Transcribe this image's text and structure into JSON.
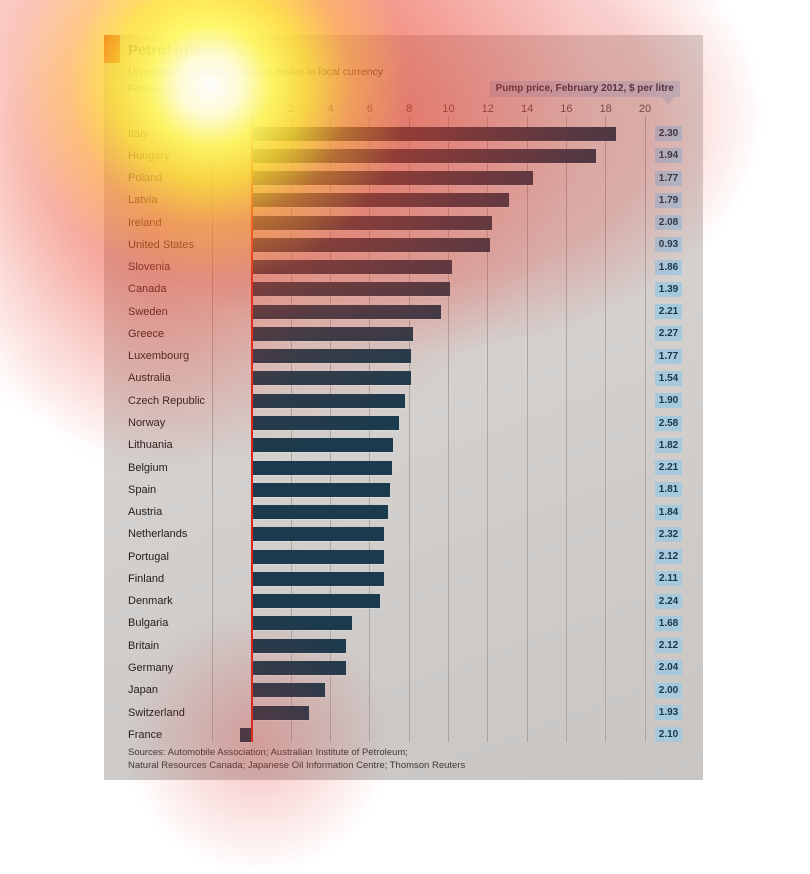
{
  "header": {
    "price_label": "Pump price, February 2012, $ per litre"
  },
  "axis": {
    "minus_sign": "–",
    "plus_sign": "+",
    "ticks": [
      {
        "v": -2,
        "label": "2"
      },
      {
        "v": 0,
        "label": "0"
      },
      {
        "v": 2,
        "label": "2"
      },
      {
        "v": 4,
        "label": "4"
      },
      {
        "v": 6,
        "label": "6"
      },
      {
        "v": 8,
        "label": "8"
      },
      {
        "v": 10,
        "label": "10"
      },
      {
        "v": 12,
        "label": "12"
      },
      {
        "v": 14,
        "label": "14"
      },
      {
        "v": 16,
        "label": "16"
      },
      {
        "v": 18,
        "label": "18"
      },
      {
        "v": 20,
        "label": "20"
      }
    ]
  },
  "chart_data": {
    "type": "bar",
    "orientation": "horizontal",
    "title": "Petrol prices",
    "subtitle": "Unleaded, % change on a year earlier in local currency",
    "date": "February 2012",
    "categories": [
      "Italy",
      "Hungary",
      "Poland",
      "Latvia",
      "Ireland",
      "United States",
      "Slovenia",
      "Canada",
      "Sweden",
      "Greece",
      "Luxembourg",
      "Australia",
      "Czech Republic",
      "Norway",
      "Lithuania",
      "Belgium",
      "Spain",
      "Austria",
      "Netherlands",
      "Portugal",
      "Finland",
      "Denmark",
      "Bulgaria",
      "Britain",
      "Germany",
      "Japan",
      "Switzerland",
      "France"
    ],
    "values": [
      18.5,
      17.5,
      14.3,
      13.1,
      12.2,
      12.1,
      10.2,
      10.1,
      9.6,
      8.2,
      8.1,
      8.1,
      7.8,
      7.5,
      7.2,
      7.1,
      7.0,
      6.9,
      6.7,
      6.7,
      6.7,
      6.5,
      5.1,
      4.8,
      4.8,
      3.7,
      2.9,
      -0.6
    ],
    "value_unit": "% change on a year earlier in local currency",
    "pump_prices": [
      2.3,
      1.94,
      1.77,
      1.79,
      2.08,
      0.93,
      1.86,
      1.39,
      2.21,
      2.27,
      1.77,
      1.54,
      1.9,
      2.58,
      1.82,
      2.21,
      1.81,
      1.84,
      2.32,
      2.12,
      2.11,
      2.24,
      1.68,
      2.12,
      2.04,
      2.0,
      1.93,
      2.1
    ],
    "pump_price_label": "Pump price, February 2012, $ per litre",
    "xlim": [
      -2,
      20
    ],
    "xticks": [
      -2,
      0,
      2,
      4,
      6,
      8,
      10,
      12,
      14,
      16,
      18,
      20
    ],
    "grid": true,
    "legend_position": "none"
  },
  "footer": {
    "sources_line1": "Sources: Automobile Association; Australian Institute of Petroleum;",
    "sources_line2": "Natural Resources Canada; Japanese Oil Information Centre; Thomson Reuters"
  },
  "colors": {
    "bar": "#1a3b4d",
    "accent_red": "#db2119",
    "zero_red": "#d9261d",
    "chip_bg": "#a7c9dc",
    "chip_text": "#17374a",
    "label_bg": "#b6c4d2",
    "label_text": "#2e3345",
    "grid": "#a9a6a3",
    "tick": "#7a7572"
  }
}
